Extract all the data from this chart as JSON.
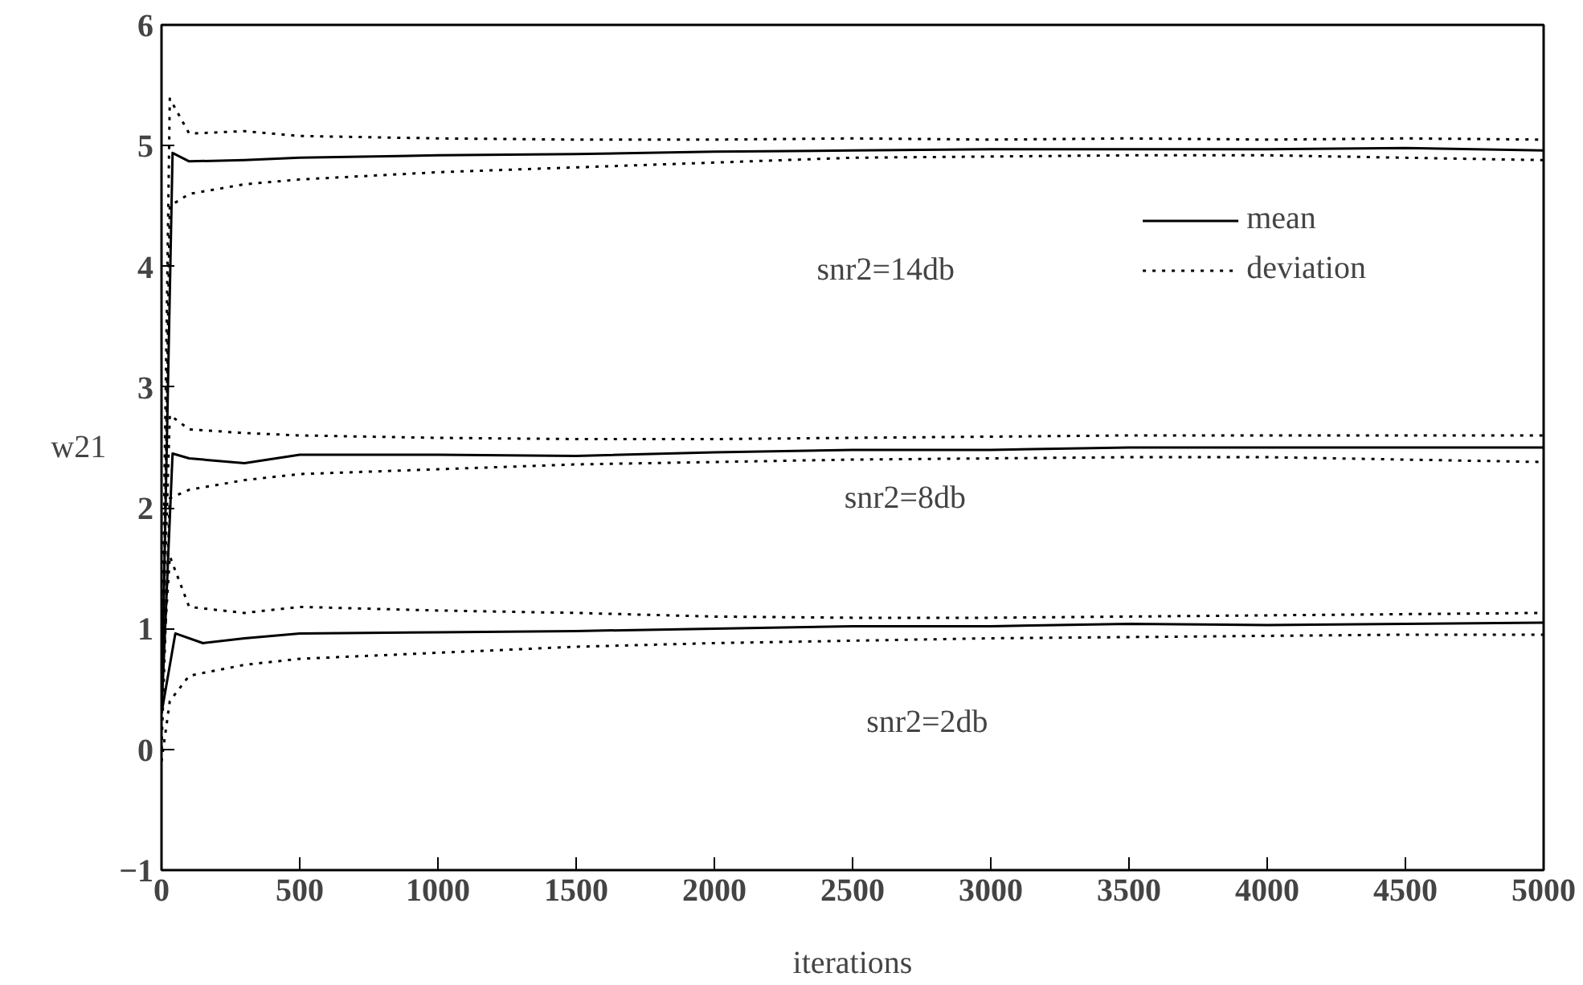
{
  "chart_data": {
    "type": "line",
    "xlabel": "iterations",
    "ylabel": "w21",
    "xlim": [
      0,
      5000
    ],
    "ylim": [
      -1,
      6
    ],
    "xticks": [
      0,
      500,
      1000,
      1500,
      2000,
      2500,
      3000,
      3500,
      4000,
      4500,
      5000
    ],
    "yticks": [
      -1,
      0,
      1,
      2,
      3,
      4,
      5,
      6
    ],
    "grid": false,
    "legend": "top right",
    "marker": "none",
    "annotations": [
      "snr2=14db",
      "snr2=8db",
      "snr2=2db"
    ],
    "series": [
      {
        "name": "mean",
        "color": "#000000",
        "line_style": "solid",
        "x": [
          0,
          40,
          100,
          300,
          500,
          1000,
          1500,
          2000,
          2500,
          3000,
          3500,
          4000,
          4500,
          5000
        ],
        "values": [
          0.3,
          4.94,
          4.87,
          4.88,
          4.9,
          4.92,
          4.93,
          4.95,
          4.96,
          4.97,
          4.97,
          4.97,
          4.98,
          4.96
        ]
      },
      {
        "name": "deviation",
        "color": "#000000",
        "line_style": "dotted",
        "x": [
          0,
          30,
          100,
          300,
          500,
          1000,
          1500,
          2000,
          2500,
          3000,
          3500,
          4000,
          4500,
          5000
        ],
        "values": [
          0.5,
          5.39,
          5.1,
          5.12,
          5.08,
          5.06,
          5.05,
          5.05,
          5.06,
          5.05,
          5.06,
          5.05,
          5.06,
          5.05
        ]
      },
      {
        "color": "#000000",
        "line_style": "dotted",
        "x": [
          0,
          30,
          100,
          300,
          500,
          1000,
          1500,
          2000,
          2500,
          3000,
          3500,
          4000,
          4500,
          5000
        ],
        "values": [
          0.0,
          4.5,
          4.6,
          4.68,
          4.72,
          4.78,
          4.82,
          4.86,
          4.9,
          4.91,
          4.92,
          4.92,
          4.9,
          4.88
        ]
      },
      {
        "color": "#000000",
        "line_style": "solid",
        "x": [
          0,
          40,
          100,
          300,
          500,
          1000,
          1500,
          2000,
          2500,
          3000,
          3500,
          4000,
          4500,
          5000
        ],
        "values": [
          0.3,
          2.45,
          2.41,
          2.37,
          2.44,
          2.44,
          2.43,
          2.46,
          2.48,
          2.48,
          2.5,
          2.5,
          2.5,
          2.5
        ]
      },
      {
        "color": "#000000",
        "line_style": "dotted",
        "x": [
          0,
          30,
          100,
          300,
          500,
          1000,
          1500,
          2000,
          2500,
          3000,
          3500,
          4000,
          4500,
          5000
        ],
        "values": [
          0.5,
          2.77,
          2.65,
          2.62,
          2.6,
          2.58,
          2.57,
          2.57,
          2.58,
          2.59,
          2.6,
          2.6,
          2.6,
          2.6
        ]
      },
      {
        "color": "#000000",
        "line_style": "dotted",
        "x": [
          0,
          30,
          100,
          300,
          500,
          1000,
          1500,
          2000,
          2500,
          3000,
          3500,
          4000,
          4500,
          5000
        ],
        "values": [
          0.0,
          2.08,
          2.15,
          2.23,
          2.28,
          2.32,
          2.36,
          2.38,
          2.4,
          2.41,
          2.42,
          2.42,
          2.4,
          2.38
        ]
      },
      {
        "color": "#000000",
        "line_style": "solid",
        "x": [
          0,
          50,
          150,
          300,
          500,
          1000,
          1500,
          2000,
          2500,
          3000,
          3500,
          4000,
          4500,
          5000
        ],
        "values": [
          0.3,
          0.96,
          0.88,
          0.92,
          0.96,
          0.97,
          0.98,
          1.0,
          1.02,
          1.02,
          1.04,
          1.03,
          1.04,
          1.05
        ]
      },
      {
        "color": "#000000",
        "line_style": "dotted",
        "x": [
          0,
          30,
          100,
          300,
          500,
          1000,
          1500,
          2000,
          2500,
          3000,
          3500,
          4000,
          4500,
          5000
        ],
        "values": [
          0.5,
          1.6,
          1.18,
          1.13,
          1.18,
          1.15,
          1.13,
          1.1,
          1.09,
          1.09,
          1.1,
          1.11,
          1.12,
          1.13
        ]
      },
      {
        "color": "#000000",
        "line_style": "dotted",
        "x": [
          0,
          30,
          100,
          300,
          500,
          1000,
          1500,
          2000,
          2500,
          3000,
          3500,
          4000,
          4500,
          5000
        ],
        "values": [
          -0.1,
          0.4,
          0.61,
          0.7,
          0.75,
          0.8,
          0.85,
          0.88,
          0.9,
          0.92,
          0.93,
          0.94,
          0.95,
          0.95
        ]
      }
    ]
  }
}
